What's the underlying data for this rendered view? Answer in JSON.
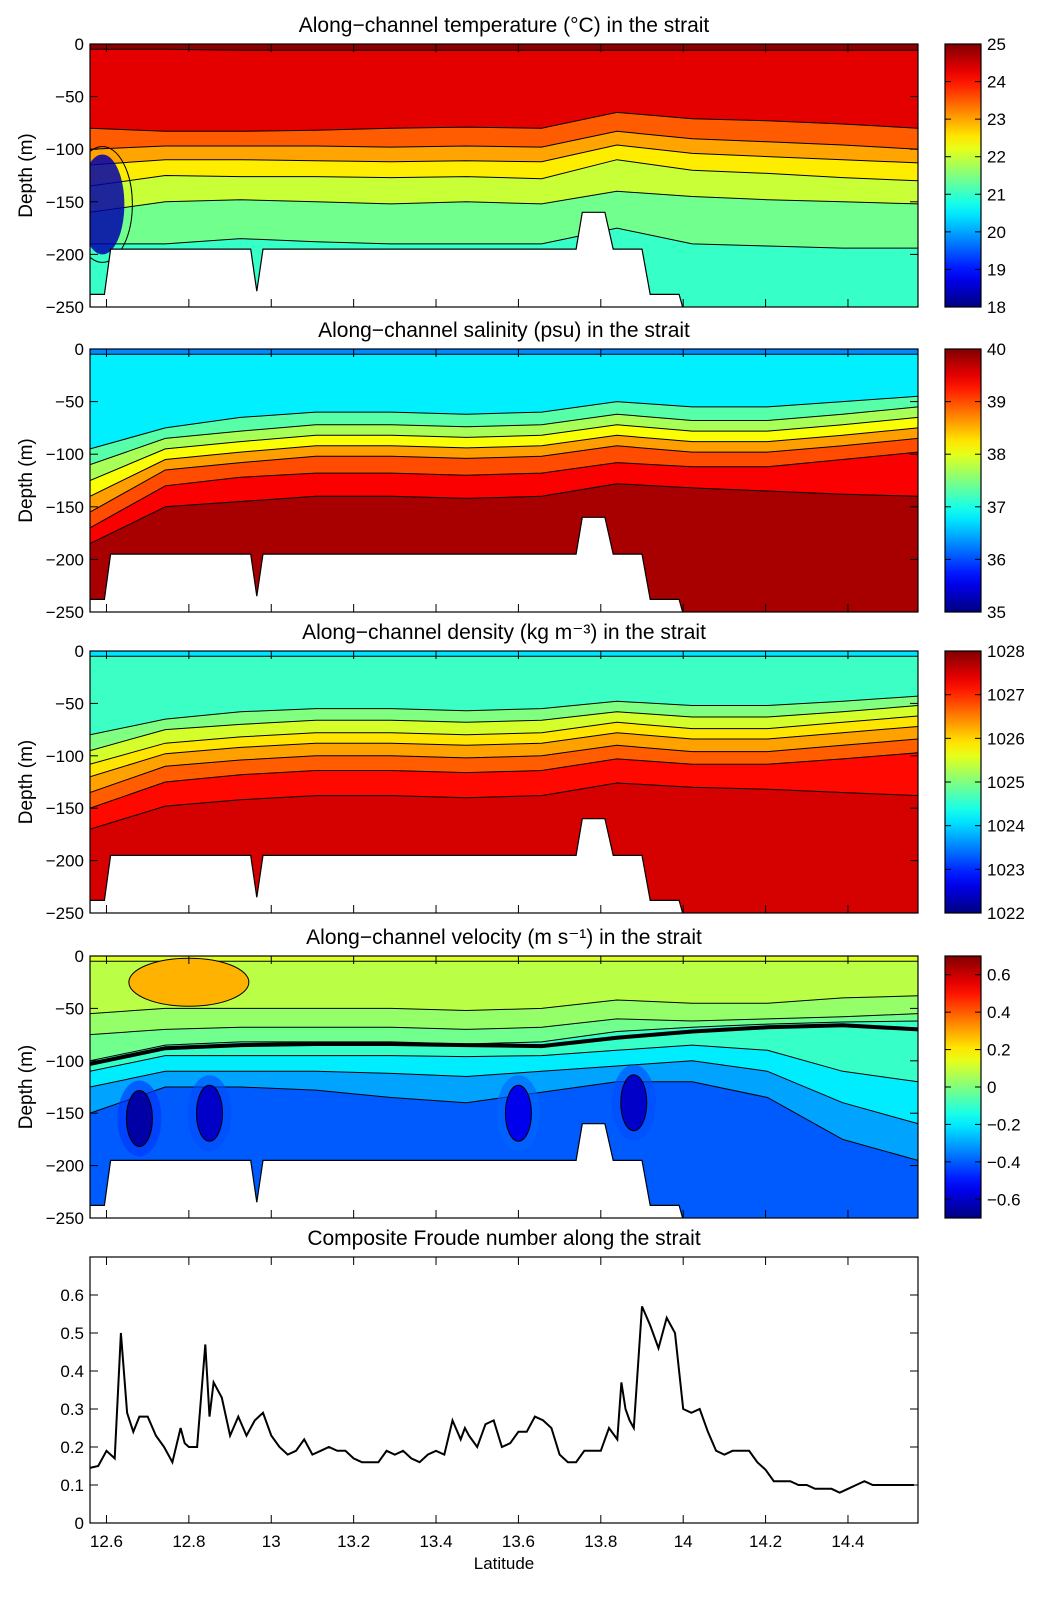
{
  "chart_data": [
    {
      "type": "heatmap",
      "title": "Along−channel temperature (°C) in the strait",
      "ylabel": "Depth (m)",
      "xlim": [
        12.56,
        14.57
      ],
      "ylim": [
        -250,
        0
      ],
      "yticks": [
        "0",
        "−50",
        "−100",
        "−150",
        "−200",
        "−250"
      ],
      "ytick_values": [
        0,
        -50,
        -100,
        -150,
        -200,
        -250
      ],
      "colorbar": {
        "min": 18,
        "max": 25,
        "ticks": [
          18,
          19,
          20,
          21,
          22,
          23,
          24,
          25
        ],
        "tick_labels": [
          "18",
          "19",
          "20",
          "21",
          "22",
          "23",
          "24",
          "25"
        ]
      },
      "layers": [
        {
          "z": [
            -5,
            -5,
            -6,
            -6,
            -6,
            -6,
            -6,
            -6,
            -6,
            -6,
            -6,
            -6
          ],
          "value": 24.9
        },
        {
          "z": [
            -80,
            -83,
            -83,
            -82,
            -80,
            -79,
            -80,
            -65,
            -71,
            -73,
            -76,
            -80
          ],
          "value": 24.3
        },
        {
          "z": [
            -100,
            -97,
            -97,
            -97,
            -98,
            -97,
            -98,
            -83,
            -90,
            -93,
            -96,
            -100
          ],
          "value": 23.5
        },
        {
          "z": [
            -115,
            -110,
            -110,
            -111,
            -112,
            -111,
            -112,
            -96,
            -104,
            -107,
            -110,
            -113
          ],
          "value": 23.0
        },
        {
          "z": [
            -135,
            -125,
            -126,
            -126,
            -127,
            -126,
            -128,
            -110,
            -120,
            -123,
            -127,
            -130
          ],
          "value": 22.5
        },
        {
          "z": [
            -160,
            -150,
            -148,
            -150,
            -152,
            -150,
            -152,
            -140,
            -145,
            -148,
            -150,
            -152
          ],
          "value": 22.0
        },
        {
          "z": [
            -190,
            -190,
            -185,
            -188,
            -190,
            -190,
            -190,
            -175,
            -190,
            -192,
            -194,
            -194
          ],
          "value": 21.4
        }
      ],
      "bottom_value": 21.0,
      "coastal_anomaly": {
        "lat": 12.59,
        "z_top": -105,
        "z_bottom": -200,
        "value": 18.3
      }
    },
    {
      "type": "heatmap",
      "title": "Along−channel salinity (psu) in the strait",
      "ylabel": "Depth (m)",
      "xlim": [
        12.56,
        14.57
      ],
      "ylim": [
        -250,
        0
      ],
      "yticks": [
        "0",
        "−50",
        "−100",
        "−150",
        "−200",
        "−250"
      ],
      "ytick_values": [
        0,
        -50,
        -100,
        -150,
        -200,
        -250
      ],
      "colorbar": {
        "min": 35,
        "max": 40,
        "ticks": [
          35,
          36,
          37,
          38,
          39,
          40
        ],
        "tick_labels": [
          "35",
          "36",
          "37",
          "38",
          "39",
          "40"
        ]
      },
      "layers": [
        {
          "z": [
            -5,
            -5,
            -5,
            -5,
            -5,
            -5,
            -5,
            -5,
            -5,
            -5,
            -5,
            -5
          ],
          "value": 36.3
        },
        {
          "z": [
            -95,
            -75,
            -65,
            -60,
            -60,
            -62,
            -60,
            -50,
            -55,
            -55,
            -50,
            -45
          ],
          "value": 36.8
        },
        {
          "z": [
            -110,
            -85,
            -78,
            -72,
            -72,
            -74,
            -72,
            -62,
            -68,
            -68,
            -62,
            -55
          ],
          "value": 37.3
        },
        {
          "z": [
            -125,
            -95,
            -88,
            -82,
            -82,
            -84,
            -82,
            -72,
            -78,
            -78,
            -72,
            -65
          ],
          "value": 37.7
        },
        {
          "z": [
            -140,
            -105,
            -98,
            -92,
            -92,
            -94,
            -92,
            -82,
            -88,
            -88,
            -82,
            -75
          ],
          "value": 38.1
        },
        {
          "z": [
            -155,
            -115,
            -108,
            -102,
            -102,
            -104,
            -102,
            -92,
            -98,
            -98,
            -92,
            -85
          ],
          "value": 38.6
        },
        {
          "z": [
            -170,
            -130,
            -122,
            -118,
            -118,
            -120,
            -118,
            -108,
            -112,
            -112,
            -105,
            -98
          ],
          "value": 39.0
        },
        {
          "z": [
            -185,
            -150,
            -145,
            -140,
            -140,
            -142,
            -140,
            -128,
            -132,
            -135,
            -138,
            -140
          ],
          "value": 39.4
        }
      ],
      "bottom_value": 39.8
    },
    {
      "type": "heatmap",
      "title": "Along−channel density (kg m⁻³) in the strait",
      "ylabel": "Depth (m)",
      "xlim": [
        12.56,
        14.57
      ],
      "ylim": [
        -250,
        0
      ],
      "yticks": [
        "0",
        "−50",
        "−100",
        "−150",
        "−200",
        "−250"
      ],
      "ytick_values": [
        0,
        -50,
        -100,
        -150,
        -200,
        -250
      ],
      "colorbar": {
        "min": 1022,
        "max": 1028,
        "ticks": [
          1022,
          1023,
          1024,
          1025,
          1026,
          1027,
          1028
        ],
        "tick_labels": [
          "1022",
          "1023",
          "1024",
          "1025",
          "1026",
          "1027",
          "1028"
        ]
      },
      "layers": [
        {
          "z": [
            -5,
            -5,
            -5,
            -5,
            -5,
            -5,
            -5,
            -5,
            -5,
            -5,
            -5,
            -5
          ],
          "value": 1024.1
        },
        {
          "z": [
            -80,
            -65,
            -58,
            -55,
            -55,
            -57,
            -55,
            -48,
            -52,
            -52,
            -48,
            -43
          ],
          "value": 1024.6
        },
        {
          "z": [
            -95,
            -75,
            -70,
            -66,
            -66,
            -68,
            -66,
            -58,
            -63,
            -63,
            -58,
            -52
          ],
          "value": 1025.0
        },
        {
          "z": [
            -108,
            -88,
            -82,
            -78,
            -78,
            -80,
            -78,
            -68,
            -74,
            -74,
            -68,
            -62
          ],
          "value": 1025.5
        },
        {
          "z": [
            -120,
            -98,
            -92,
            -88,
            -88,
            -90,
            -88,
            -78,
            -84,
            -84,
            -78,
            -72
          ],
          "value": 1025.9
        },
        {
          "z": [
            -135,
            -110,
            -104,
            -100,
            -100,
            -102,
            -100,
            -90,
            -96,
            -96,
            -90,
            -84
          ],
          "value": 1026.3
        },
        {
          "z": [
            -150,
            -125,
            -118,
            -114,
            -114,
            -116,
            -114,
            -103,
            -108,
            -108,
            -103,
            -97
          ],
          "value": 1026.7
        },
        {
          "z": [
            -170,
            -148,
            -142,
            -138,
            -138,
            -140,
            -138,
            -126,
            -130,
            -132,
            -135,
            -138
          ],
          "value": 1027.2
        }
      ],
      "bottom_value": 1027.5
    },
    {
      "type": "heatmap",
      "title": "Along−channel velocity (m s⁻¹) in the strait",
      "ylabel": "Depth (m)",
      "xlim": [
        12.56,
        14.57
      ],
      "ylim": [
        -250,
        0
      ],
      "yticks": [
        "0",
        "−50",
        "−100",
        "−150",
        "−200",
        "−250"
      ],
      "ytick_values": [
        0,
        -50,
        -100,
        -150,
        -200,
        -250
      ],
      "colorbar": {
        "min": -0.7,
        "max": 0.7,
        "ticks": [
          -0.6,
          -0.4,
          -0.2,
          0,
          0.2,
          0.4,
          0.6
        ],
        "tick_labels": [
          "−0.6",
          "−0.4",
          "−0.2",
          "0",
          "0.2",
          "0.4",
          "0.6"
        ]
      },
      "layers": [
        {
          "z": [
            -5,
            -5,
            -5,
            -5,
            -5,
            -5,
            -5,
            -5,
            -5,
            -5,
            -5,
            -5
          ],
          "value": 0.13
        },
        {
          "z": [
            -55,
            -50,
            -50,
            -50,
            -50,
            -52,
            -50,
            -42,
            -45,
            -45,
            -40,
            -38
          ],
          "value": 0.08
        },
        {
          "z": [
            -75,
            -70,
            -68,
            -68,
            -68,
            -70,
            -68,
            -60,
            -62,
            -60,
            -58,
            -55
          ],
          "value": 0.03
        },
        {
          "z": [
            -100,
            -85,
            -82,
            -82,
            -82,
            -84,
            -82,
            -72,
            -68,
            -65,
            -63,
            -62
          ],
          "value": -0.02
        },
        {
          "z": [
            -110,
            -95,
            -95,
            -95,
            -95,
            -96,
            -95,
            -90,
            -85,
            -90,
            -110,
            -120
          ],
          "value": -0.1
        },
        {
          "z": [
            -125,
            -110,
            -110,
            -110,
            -112,
            -115,
            -110,
            -105,
            -100,
            -110,
            -140,
            -160
          ],
          "value": -0.2
        },
        {
          "z": [
            -150,
            -125,
            -125,
            -128,
            -135,
            -140,
            -130,
            -120,
            -120,
            -135,
            -175,
            -195
          ],
          "value": -0.3
        }
      ],
      "bottom_value": -0.4,
      "cores": [
        {
          "lat": 12.68,
          "z": -155,
          "value": -0.65
        },
        {
          "lat": 12.85,
          "z": -150,
          "value": -0.6
        },
        {
          "lat": 13.6,
          "z": -150,
          "value": -0.55
        },
        {
          "lat": 13.88,
          "z": -140,
          "value": -0.6
        }
      ],
      "surface_patch": {
        "lat": 12.8,
        "z": -25,
        "value": 0.28
      },
      "thick_contour_z": [
        -103,
        -88,
        -85,
        -84,
        -84,
        -85,
        -86,
        -78,
        -72,
        -68,
        -66,
        -70
      ]
    },
    {
      "type": "line",
      "title": "Composite Froude number along the strait",
      "xlabel": "Latitude",
      "ylabel": "",
      "xlim": [
        12.56,
        14.57
      ],
      "ylim": [
        0,
        0.7
      ],
      "xticks": [
        12.6,
        12.8,
        13,
        13.2,
        13.4,
        13.6,
        13.8,
        14,
        14.2,
        14.4
      ],
      "xtick_labels": [
        "12.6",
        "12.8",
        "13",
        "13.2",
        "13.4",
        "13.6",
        "13.8",
        "14",
        "14.2",
        "14.4"
      ],
      "yticks": [
        0,
        0.1,
        0.2,
        0.3,
        0.4,
        0.5,
        0.6
      ],
      "ytick_labels": [
        "0",
        "0.1",
        "0.2",
        "0.3",
        "0.4",
        "0.5",
        "0.6"
      ],
      "x": [
        12.56,
        12.58,
        12.6,
        12.62,
        12.635,
        12.65,
        12.665,
        12.68,
        12.7,
        12.72,
        12.74,
        12.76,
        12.78,
        12.79,
        12.8,
        12.82,
        12.84,
        12.85,
        12.86,
        12.88,
        12.9,
        12.92,
        12.94,
        12.96,
        12.98,
        13,
        13.02,
        13.04,
        13.06,
        13.08,
        13.1,
        13.12,
        13.14,
        13.16,
        13.18,
        13.2,
        13.22,
        13.24,
        13.26,
        13.28,
        13.3,
        13.32,
        13.34,
        13.36,
        13.38,
        13.4,
        13.42,
        13.44,
        13.46,
        13.47,
        13.48,
        13.5,
        13.52,
        13.54,
        13.56,
        13.58,
        13.6,
        13.62,
        13.64,
        13.66,
        13.68,
        13.7,
        13.72,
        13.74,
        13.76,
        13.78,
        13.8,
        13.82,
        13.84,
        13.85,
        13.86,
        13.87,
        13.88,
        13.9,
        13.92,
        13.94,
        13.96,
        13.98,
        14,
        14.02,
        14.04,
        14.06,
        14.08,
        14.1,
        14.12,
        14.14,
        14.16,
        14.18,
        14.2,
        14.22,
        14.24,
        14.26,
        14.28,
        14.3,
        14.32,
        14.34,
        14.36,
        14.38,
        14.4,
        14.42,
        14.44,
        14.46,
        14.48,
        14.5,
        14.52,
        14.54,
        14.56
      ],
      "y": [
        0.145,
        0.15,
        0.19,
        0.17,
        0.5,
        0.29,
        0.24,
        0.28,
        0.28,
        0.23,
        0.2,
        0.16,
        0.25,
        0.21,
        0.2,
        0.2,
        0.47,
        0.28,
        0.37,
        0.33,
        0.23,
        0.28,
        0.23,
        0.27,
        0.29,
        0.23,
        0.2,
        0.18,
        0.19,
        0.22,
        0.18,
        0.19,
        0.2,
        0.19,
        0.19,
        0.17,
        0.16,
        0.16,
        0.16,
        0.19,
        0.18,
        0.19,
        0.17,
        0.16,
        0.18,
        0.19,
        0.18,
        0.27,
        0.22,
        0.25,
        0.23,
        0.2,
        0.26,
        0.27,
        0.2,
        0.21,
        0.24,
        0.24,
        0.28,
        0.27,
        0.25,
        0.18,
        0.16,
        0.16,
        0.19,
        0.19,
        0.19,
        0.25,
        0.22,
        0.37,
        0.3,
        0.27,
        0.25,
        0.57,
        0.52,
        0.46,
        0.54,
        0.5,
        0.3,
        0.29,
        0.3,
        0.24,
        0.19,
        0.18,
        0.19,
        0.19,
        0.19,
        0.16,
        0.14,
        0.11,
        0.11,
        0.11,
        0.1,
        0.1,
        0.09,
        0.09,
        0.09,
        0.08,
        0.09,
        0.1,
        0.11,
        0.1,
        0.1,
        0.1,
        0.1,
        0.1,
        0.1
      ]
    }
  ]
}
